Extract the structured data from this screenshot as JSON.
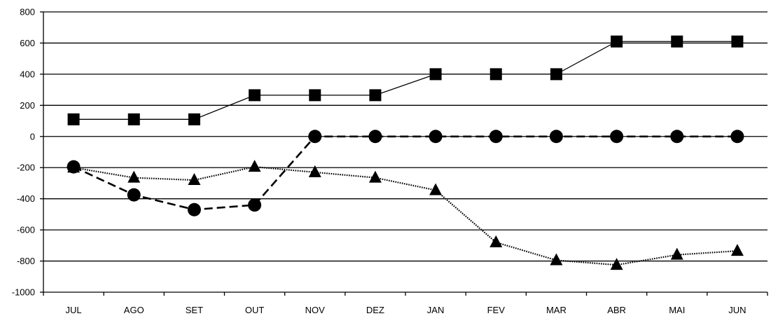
{
  "chart_data": {
    "type": "line",
    "categories": [
      "JUL",
      "AGO",
      "SET",
      "OUT",
      "NOV",
      "DEZ",
      "JAN",
      "FEV",
      "MAR",
      "ABR",
      "MAI",
      "JUN"
    ],
    "ylim": [
      -1000,
      800
    ],
    "yticks": [
      800,
      600,
      400,
      200,
      0,
      -200,
      -400,
      -600,
      -800,
      -1000
    ],
    "grid": "horizontal",
    "legend": "none",
    "series": [
      {
        "marker": "square",
        "line_style": "solid",
        "color": "#000000",
        "values": [
          110,
          110,
          110,
          265,
          265,
          265,
          400,
          400,
          400,
          610,
          610,
          610
        ]
      },
      {
        "marker": "circle",
        "line_style": "dashed",
        "color": "#000000",
        "values": [
          -195,
          -375,
          -470,
          -440,
          0,
          0,
          0,
          0,
          0,
          0,
          0,
          0
        ]
      },
      {
        "marker": "triangle",
        "line_style": "dotted",
        "color": "#000000",
        "values": [
          -200,
          -265,
          -280,
          -195,
          -230,
          -265,
          -345,
          -680,
          -795,
          -825,
          -760,
          -735
        ]
      }
    ]
  }
}
